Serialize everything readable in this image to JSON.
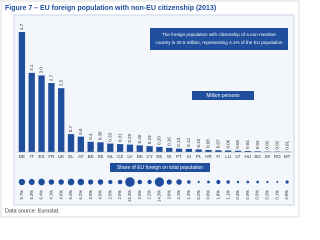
{
  "chart_data": {
    "type": "bar",
    "title": "Figure 7 – EU foreign population with non-EU citizenship (2013)",
    "annotation_lines": [
      "The foreign population with citizenship of a non-member",
      "country is 20.5 million, representing 4.1% of the EU population"
    ],
    "unit_label": "Million persons",
    "share_label": "Share of EU foreign on total population",
    "source": "Data source: Eurostat.",
    "categories": [
      "DE",
      "IT",
      "ES",
      "FR",
      "UK",
      "EL",
      "AT",
      "BE",
      "SE",
      "NL",
      "CZ",
      "LV",
      "DK",
      "CY",
      "EE",
      "IE",
      "PT",
      "SI",
      "PL",
      "HR",
      "FI",
      "LU",
      "LT",
      "HU",
      "BG",
      "SK",
      "RO",
      "MT"
    ],
    "series": [
      {
        "name": "Million persons",
        "color": "#1f4e9c",
        "values": [
          4.7,
          3.1,
          3.0,
          2.7,
          2.5,
          0.7,
          0.6,
          0.4,
          0.38,
          0.33,
          0.31,
          0.29,
          0.26,
          0.23,
          0.2,
          0.16,
          0.13,
          0.12,
          0.1,
          0.08,
          0.07,
          0.06,
          0.05,
          0.04,
          0.03,
          0.02,
          0.02,
          0.01
        ],
        "value_labels": [
          "4.7",
          "3.1",
          "3.0",
          "2.7",
          "2.5",
          "0.7",
          "0.6",
          "0.4",
          "0.38",
          "0.33",
          "0.31",
          "0.29",
          "0.26",
          "0.23",
          "0.20",
          "0.16",
          "0.13",
          "0.12",
          "0.10",
          "0.08",
          "0.07",
          "0.06",
          "0.05",
          "0.04",
          "0.03",
          "0.02",
          "0.02",
          "0.01"
        ]
      },
      {
        "name": "Share of EU foreign on total population",
        "color": "#1f4e9c",
        "values": [
          5.7,
          5.3,
          6.4,
          4.1,
          4.0,
          6.4,
          6.2,
          3.5,
          4.0,
          2.0,
          2.5,
          15.3,
          2.5,
          2.2,
          14.3,
          3.6,
          4.1,
          1.2,
          0.2,
          0.6,
          1.9,
          1.1,
          0.3,
          0.5,
          0.5,
          0.2,
          0.1,
          0.9
        ],
        "value_labels": [
          "5.7%",
          "5.3%",
          "6.4%",
          "4.1%",
          "4.0%",
          "6.4%",
          "6.2%",
          "3.5%",
          "4.0%",
          "2.0%",
          "2.5%",
          "15.3%",
          "2.5%",
          "2.2%",
          "14.3%",
          "3.6%",
          "4.1%",
          "1.2%",
          "0.2%",
          "0.6%",
          "1.9%",
          "1.1%",
          "0.3%",
          "0.5%",
          "0.5%",
          "0.2%",
          "0.1%",
          "0.9%"
        ]
      }
    ]
  }
}
